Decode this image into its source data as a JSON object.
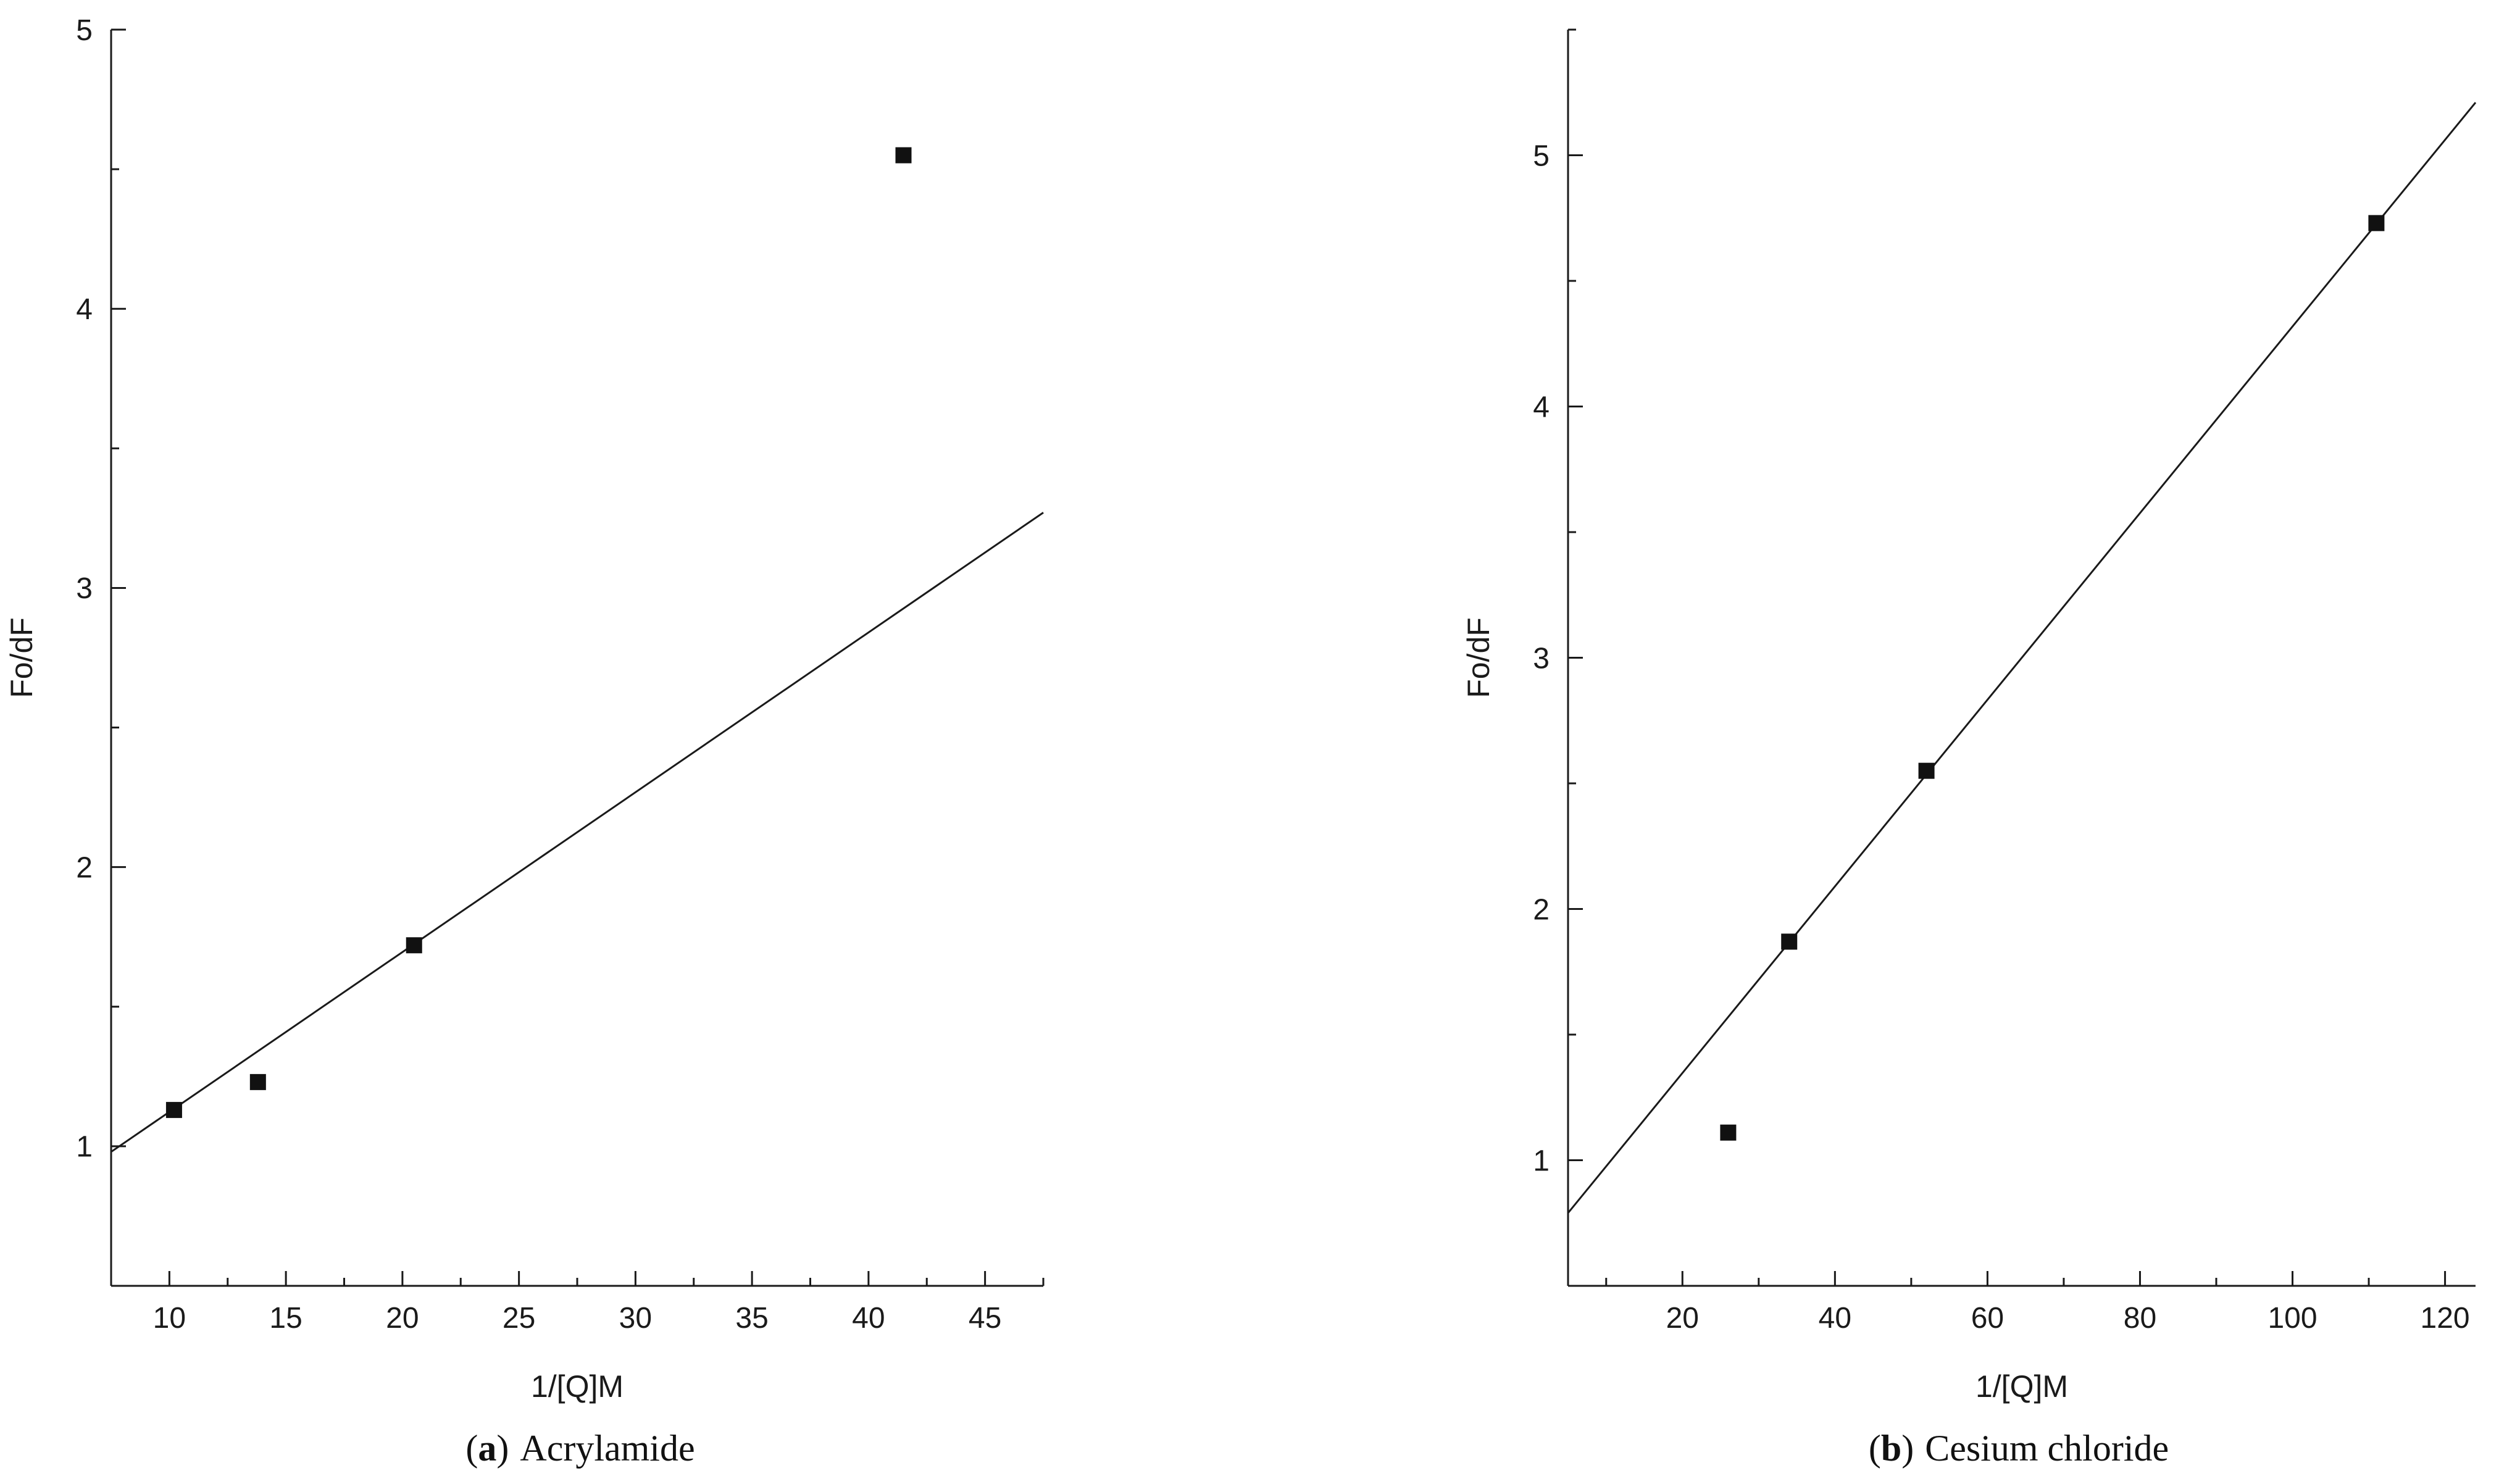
{
  "page": {
    "background": "#ffffff"
  },
  "captions": [
    {
      "open": "(",
      "index_label": "a",
      "close": ")",
      "text": "Acrylamide"
    },
    {
      "open": "(",
      "index_label": "b",
      "close": ")",
      "text": "Cesium chloride"
    }
  ],
  "chart_data": [
    {
      "id": "a",
      "type": "scatter",
      "title": "(a) Acrylamide",
      "xlabel": "1/[Q]M",
      "ylabel": "Fo/dF",
      "xlim": [
        7.5,
        47.5
      ],
      "ylim": [
        0.5,
        5
      ],
      "x_ticks": [
        10,
        15,
        20,
        25,
        30,
        35,
        40,
        45
      ],
      "y_ticks": [
        1,
        2,
        3,
        4,
        5
      ],
      "x_minor_step": 2.5,
      "y_minor_step": 0.5,
      "grid": false,
      "legend": "none",
      "axes_box": false,
      "marker": "filled-square",
      "points": [
        [
          10.2,
          1.13
        ],
        [
          13.8,
          1.23
        ],
        [
          20.5,
          1.72
        ],
        [
          41.5,
          4.55
        ]
      ],
      "fit_line": {
        "x1": 7.5,
        "y1": 0.98,
        "x2": 47.5,
        "y2": 3.27
      },
      "colors": {
        "axis": "#1a1a1a",
        "marker": "#111111",
        "line": "#1a1a1a"
      }
    },
    {
      "id": "b",
      "type": "scatter",
      "title": "(b) Cesium chloride",
      "xlabel": "1/[Q]M",
      "ylabel": "Fo/dF",
      "xlim": [
        5,
        124
      ],
      "ylim": [
        0.5,
        5.5
      ],
      "x_ticks": [
        20,
        40,
        60,
        80,
        100,
        120
      ],
      "y_ticks": [
        1,
        2,
        3,
        4,
        5
      ],
      "x_minor_step": 10,
      "y_minor_step": 0.5,
      "grid": false,
      "legend": "none",
      "axes_box": false,
      "marker": "filled-square",
      "points": [
        [
          26,
          1.11
        ],
        [
          34,
          1.87
        ],
        [
          52,
          2.55
        ],
        [
          111,
          4.73
        ]
      ],
      "fit_line": {
        "x1": 5,
        "y1": 0.79,
        "x2": 124,
        "y2": 5.21
      },
      "colors": {
        "axis": "#1a1a1a",
        "marker": "#111111",
        "line": "#1a1a1a"
      }
    }
  ]
}
